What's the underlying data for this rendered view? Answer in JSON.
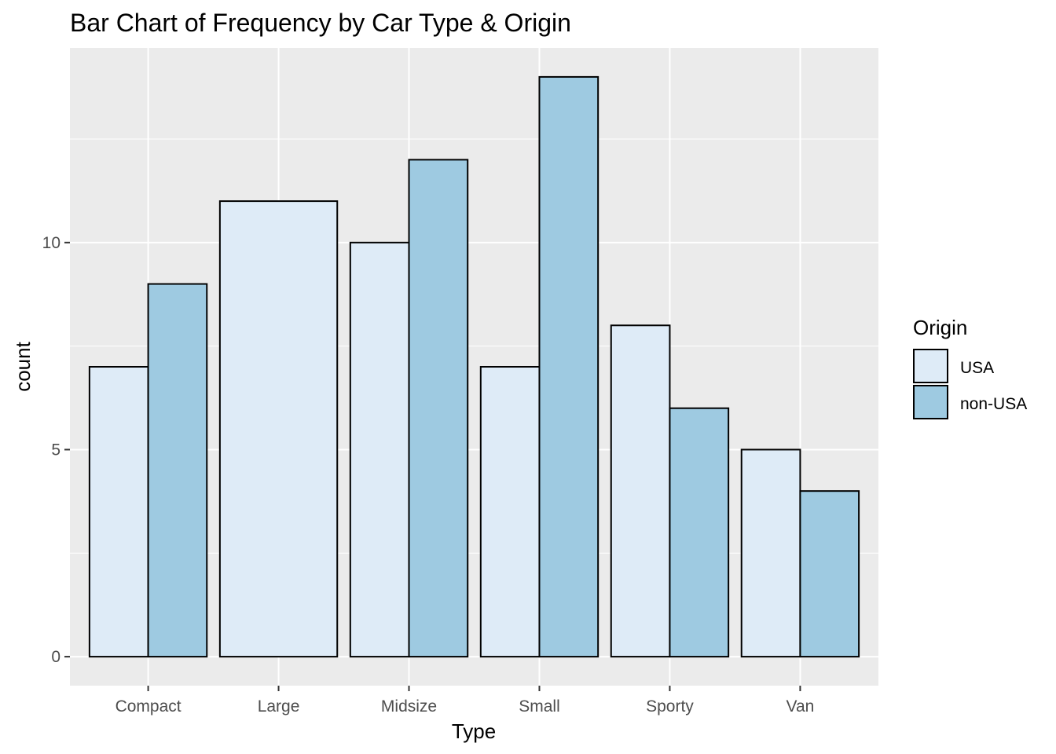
{
  "chart_data": {
    "type": "bar",
    "title": "Bar Chart of Frequency by Car Type & Origin",
    "xlabel": "Type",
    "ylabel": "count",
    "categories": [
      "Compact",
      "Large",
      "Midsize",
      "Small",
      "Sporty",
      "Van"
    ],
    "series": [
      {
        "name": "USA",
        "color": "#deebf7",
        "values": [
          7,
          11,
          10,
          7,
          8,
          5
        ]
      },
      {
        "name": "non-USA",
        "color": "#9ecae1",
        "values": [
          9,
          0,
          12,
          14,
          6,
          4
        ]
      }
    ],
    "yticks": [
      0,
      5,
      10
    ],
    "ylim": [
      -0.7,
      14.7
    ],
    "grid": true,
    "legend": {
      "title": "Origin",
      "position": "right"
    },
    "panel_color": "#ebebeb",
    "bar_outline": "#000000"
  }
}
